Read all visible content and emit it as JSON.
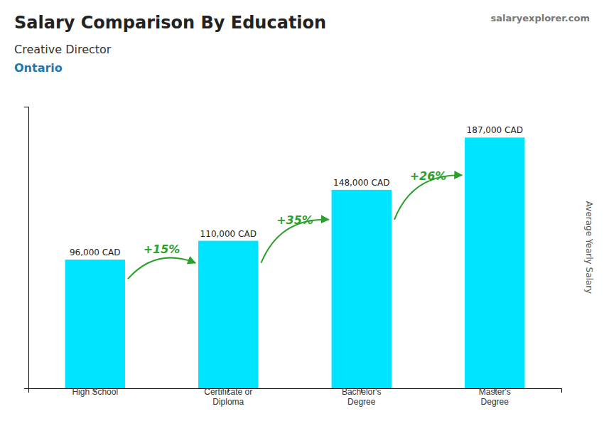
{
  "chart_data": {
    "type": "bar",
    "title": "Salary Comparison By Education",
    "subtitle": [
      "Creative Director",
      "Ontario"
    ],
    "ylabel": "Average Yearly Salary",
    "categories": [
      "High School",
      "Certificate or\nDiploma",
      "Bachelor's\nDegree",
      "Master's\nDegree"
    ],
    "values": [
      96000,
      110000,
      148000,
      187000
    ],
    "value_labels": [
      "96,000 CAD",
      "110,000 CAD",
      "148,000 CAD",
      "187,000 CAD"
    ],
    "data_labels": true,
    "color": "#00e5ff",
    "ylim": [
      0,
      210000
    ],
    "tick_labels": "x",
    "grid": false,
    "annotations": [
      {
        "text": "salaryexplorer.com"
      },
      {
        "text": "+15%",
        "between": [
          0,
          1
        ]
      },
      {
        "text": "+35%",
        "between": [
          1,
          2
        ]
      },
      {
        "text": "+26%",
        "between": [
          2,
          3
        ]
      }
    ]
  }
}
